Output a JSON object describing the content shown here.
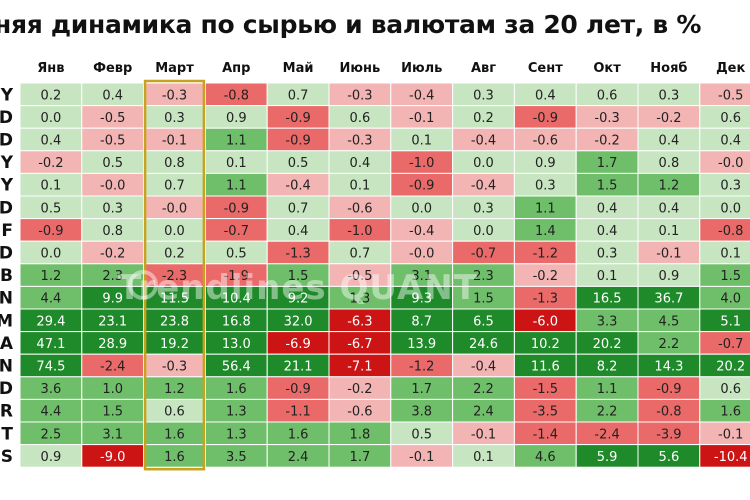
{
  "title": "няя динамика по сырью и валютам за 20 лет, в %",
  "watermark": "Trendlines QUANT",
  "colors": {
    "pos_light": "#c6e5c0",
    "pos_mid": "#6fbf6a",
    "pos_dark": "#1f8a2a",
    "neg_light": "#f3b4b4",
    "neg_mid": "#ea6a6a",
    "neg_dark": "#cc1414",
    "highlight_border": "#c8a21e"
  },
  "chart_data": {
    "type": "heatmap",
    "title": "няя динамика по сырью и валютам за 20 лет, в %",
    "columns": [
      "Янв",
      "Февр",
      "Март",
      "Апр",
      "Май",
      "Июнь",
      "Июль",
      "Авг",
      "Сент",
      "Окт",
      "Нояб",
      "Дек"
    ],
    "row_labels": [
      "Y",
      "D",
      "D",
      "Y",
      "Y",
      "D",
      "F",
      "D",
      "B",
      "N",
      "M",
      "A",
      "N",
      "D",
      "R",
      "T",
      "S"
    ],
    "highlighted_column": "Март",
    "values": [
      [
        "0.2",
        "0.4",
        "-0.3",
        "-0.8",
        "0.7",
        "-0.3",
        "-0.4",
        "0.3",
        "0.4",
        "0.6",
        "0.3",
        "-0.5"
      ],
      [
        "0.0",
        "-0.5",
        "0.3",
        "0.9",
        "-0.9",
        "0.6",
        "-0.1",
        "0.2",
        "-0.9",
        "-0.3",
        "-0.2",
        "0.6"
      ],
      [
        "0.4",
        "-0.5",
        "-0.1",
        "1.1",
        "-0.9",
        "-0.3",
        "0.1",
        "-0.4",
        "-0.6",
        "-0.2",
        "0.4",
        "0.4"
      ],
      [
        "-0.2",
        "0.5",
        "0.8",
        "0.1",
        "0.5",
        "0.4",
        "-1.0",
        "0.0",
        "0.9",
        "1.7",
        "0.8",
        "-0.0"
      ],
      [
        "0.1",
        "-0.0",
        "0.7",
        "1.1",
        "-0.4",
        "0.1",
        "-0.9",
        "-0.4",
        "0.3",
        "1.5",
        "1.2",
        "0.3"
      ],
      [
        "0.5",
        "0.3",
        "-0.0",
        "-0.9",
        "0.7",
        "-0.6",
        "0.0",
        "0.3",
        "1.1",
        "0.4",
        "0.4",
        "0.0"
      ],
      [
        "-0.9",
        "0.8",
        "0.0",
        "-0.7",
        "0.4",
        "-1.0",
        "-0.4",
        "0.0",
        "1.4",
        "0.4",
        "0.1",
        "-0.8"
      ],
      [
        "0.0",
        "-0.2",
        "0.2",
        "0.5",
        "-1.3",
        "0.7",
        "-0.0",
        "-0.7",
        "-1.2",
        "0.3",
        "-0.1",
        "0.1"
      ],
      [
        "1.2",
        "2.3",
        "-2.3",
        "-1.9",
        "1.5",
        "-0.5",
        "3.1",
        "2.3",
        "-0.2",
        "0.1",
        "0.9",
        "1.5"
      ],
      [
        "4.4",
        "9.9",
        "11.5",
        "10.4",
        "9.2",
        "1.3",
        "9.3",
        "1.5",
        "-1.3",
        "16.5",
        "36.7",
        "4.0"
      ],
      [
        "29.4",
        "23.1",
        "23.8",
        "16.8",
        "32.0",
        "-6.3",
        "8.7",
        "6.5",
        "-6.0",
        "3.3",
        "4.5",
        "5.1"
      ],
      [
        "47.1",
        "28.9",
        "19.2",
        "13.0",
        "-6.9",
        "-6.7",
        "13.9",
        "24.6",
        "10.2",
        "20.2",
        "2.2",
        "-0.7"
      ],
      [
        "74.5",
        "-2.4",
        "-0.3",
        "56.4",
        "21.1",
        "-7.1",
        "-1.2",
        "-0.4",
        "11.6",
        "8.2",
        "14.3",
        "20.2"
      ],
      [
        "3.6",
        "1.0",
        "1.2",
        "1.6",
        "-0.9",
        "-0.2",
        "1.7",
        "2.2",
        "-1.5",
        "1.1",
        "-0.9",
        "0.6"
      ],
      [
        "4.4",
        "1.5",
        "0.6",
        "1.3",
        "-1.1",
        "-0.6",
        "3.8",
        "2.4",
        "-3.5",
        "2.2",
        "-0.8",
        "1.6"
      ],
      [
        "2.5",
        "3.1",
        "1.6",
        "1.3",
        "1.6",
        "1.8",
        "0.5",
        "-0.1",
        "-1.4",
        "-2.4",
        "-3.9",
        "-0.1"
      ],
      [
        "0.9",
        "-9.0",
        "1.6",
        "3.5",
        "2.4",
        "1.7",
        "-0.1",
        "0.1",
        "4.6",
        "5.9",
        "5.6",
        "-10.4"
      ]
    ]
  }
}
